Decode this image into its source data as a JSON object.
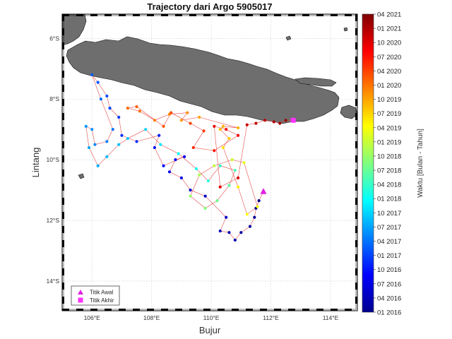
{
  "chart_data": {
    "type": "scatter",
    "title": "Trajectory dari Argo 5905017",
    "xlabel": "Bujur",
    "ylabel": "Lintang",
    "xlim": [
      105.0,
      114.9
    ],
    "ylim": [
      -14.98,
      -5.2
    ],
    "x_ticks": [
      106,
      108,
      110,
      112,
      114
    ],
    "x_tick_labels": [
      "106°E",
      "108°E",
      "110°E",
      "112°E",
      "114°E"
    ],
    "y_ticks": [
      -6,
      -8,
      -10,
      -12,
      -14
    ],
    "y_tick_labels": [
      "6°S",
      "8°S",
      "10°S",
      "12°S",
      "14°S"
    ],
    "grid": true,
    "land_color": "#6e6e6e",
    "track_color": "#e64b4b",
    "start_marker_color": "#e020e0",
    "end_marker_color": "#ff33ff",
    "colorbar": {
      "title": "Waktu [Bulan - Tahun]",
      "min": 2016.0,
      "max": 2021.25,
      "ticks": [
        2016.0,
        2016.25,
        2016.5,
        2016.75,
        2017.0,
        2017.25,
        2017.5,
        2017.75,
        2018.0,
        2018.25,
        2018.5,
        2018.75,
        2019.0,
        2019.25,
        2019.5,
        2019.75,
        2020.0,
        2020.25,
        2020.5,
        2020.75,
        2021.0,
        2021.25
      ],
      "tick_labels": [
        "01 2016",
        "04 2016",
        "07 2016",
        "10 2016",
        "01 2017",
        "04 2017",
        "07 2017",
        "10 2017",
        "01 2018",
        "04 2018",
        "07 2018",
        "10 2018",
        "01 2019",
        "04 2019",
        "07 2019",
        "10 2019",
        "01 2020",
        "04 2020",
        "07 2020",
        "10 2020",
        "01 2021",
        "04 2021"
      ]
    },
    "legend": {
      "placement": "bottom-left",
      "entries": [
        {
          "label": "Titik Awal",
          "marker": "triangle"
        },
        {
          "label": "Titik Akhir",
          "marker": "square"
        }
      ]
    },
    "start_point": {
      "x": 111.75,
      "y": -11.05
    },
    "end_point": {
      "x": 112.75,
      "y": -8.7
    },
    "series": [
      {
        "values": [
          {
            "x": 111.75,
            "y": -11.05,
            "t": 2016.0
          },
          {
            "x": 111.6,
            "y": -11.35,
            "t": 2016.04
          },
          {
            "x": 111.5,
            "y": -11.6,
            "t": 2016.08
          },
          {
            "x": 111.45,
            "y": -11.9,
            "t": 2016.12
          },
          {
            "x": 111.3,
            "y": -12.2,
            "t": 2016.16
          },
          {
            "x": 111.0,
            "y": -12.4,
            "t": 2016.2
          },
          {
            "x": 110.8,
            "y": -12.65,
            "t": 2016.24
          },
          {
            "x": 110.6,
            "y": -12.4,
            "t": 2016.28
          },
          {
            "x": 110.3,
            "y": -12.35,
            "t": 2016.32
          },
          {
            "x": 110.5,
            "y": -11.9,
            "t": 2016.36
          },
          {
            "x": 109.8,
            "y": -11.2,
            "t": 2016.4
          },
          {
            "x": 109.3,
            "y": -11.0,
            "t": 2016.45
          },
          {
            "x": 109.0,
            "y": -10.6,
            "t": 2016.5
          },
          {
            "x": 108.6,
            "y": -10.4,
            "t": 2016.55
          },
          {
            "x": 108.8,
            "y": -10.0,
            "t": 2016.6
          },
          {
            "x": 109.1,
            "y": -9.9,
            "t": 2016.65
          },
          {
            "x": 108.4,
            "y": -10.2,
            "t": 2016.7
          },
          {
            "x": 108.1,
            "y": -9.6,
            "t": 2016.75
          },
          {
            "x": 108.25,
            "y": -9.2,
            "t": 2016.8
          },
          {
            "x": 107.5,
            "y": -9.4,
            "t": 2016.85
          },
          {
            "x": 107.0,
            "y": -9.2,
            "t": 2016.9
          },
          {
            "x": 106.9,
            "y": -8.6,
            "t": 2016.95
          },
          {
            "x": 106.6,
            "y": -8.3,
            "t": 2017.0
          },
          {
            "x": 106.5,
            "y": -7.9,
            "t": 2017.05
          },
          {
            "x": 106.2,
            "y": -7.45,
            "t": 2017.1
          },
          {
            "x": 106.0,
            "y": -7.2,
            "t": 2017.15
          },
          {
            "x": 106.3,
            "y": -8.0,
            "t": 2017.2
          },
          {
            "x": 106.7,
            "y": -9.0,
            "t": 2017.25
          },
          {
            "x": 106.5,
            "y": -9.4,
            "t": 2017.3
          },
          {
            "x": 106.1,
            "y": -9.5,
            "t": 2017.35
          },
          {
            "x": 106.0,
            "y": -9.0,
            "t": 2017.4
          },
          {
            "x": 105.8,
            "y": -8.9,
            "t": 2017.45
          },
          {
            "x": 105.9,
            "y": -9.6,
            "t": 2017.5
          },
          {
            "x": 106.2,
            "y": -10.2,
            "t": 2017.55
          },
          {
            "x": 106.5,
            "y": -9.9,
            "t": 2017.6
          },
          {
            "x": 106.9,
            "y": -9.5,
            "t": 2017.65
          },
          {
            "x": 107.2,
            "y": -9.3,
            "t": 2017.7
          },
          {
            "x": 107.8,
            "y": -9.0,
            "t": 2017.75
          },
          {
            "x": 108.3,
            "y": -9.5,
            "t": 2017.85
          },
          {
            "x": 108.9,
            "y": -9.8,
            "t": 2017.95
          },
          {
            "x": 109.5,
            "y": -10.3,
            "t": 2018.05
          },
          {
            "x": 109.9,
            "y": -10.7,
            "t": 2018.15
          },
          {
            "x": 110.3,
            "y": -10.2,
            "t": 2018.25
          },
          {
            "x": 110.8,
            "y": -10.35,
            "t": 2018.35
          },
          {
            "x": 110.6,
            "y": -10.85,
            "t": 2018.45
          },
          {
            "x": 110.2,
            "y": -11.35,
            "t": 2018.55
          },
          {
            "x": 109.8,
            "y": -11.6,
            "t": 2018.65
          },
          {
            "x": 109.3,
            "y": -11.2,
            "t": 2018.75
          },
          {
            "x": 109.6,
            "y": -10.5,
            "t": 2018.85
          },
          {
            "x": 110.1,
            "y": -10.2,
            "t": 2018.95
          },
          {
            "x": 110.7,
            "y": -10.0,
            "t": 2019.05
          },
          {
            "x": 111.1,
            "y": -10.1,
            "t": 2019.15
          },
          {
            "x": 111.55,
            "y": -11.55,
            "t": 2019.22
          },
          {
            "x": 111.2,
            "y": -11.8,
            "t": 2019.28
          },
          {
            "x": 110.9,
            "y": -10.9,
            "t": 2019.35
          },
          {
            "x": 110.4,
            "y": -9.6,
            "t": 2019.45
          },
          {
            "x": 110.6,
            "y": -9.3,
            "t": 2019.55
          },
          {
            "x": 110.3,
            "y": -9.0,
            "t": 2019.6
          },
          {
            "x": 110.4,
            "y": -8.9,
            "t": 2019.65
          },
          {
            "x": 110.9,
            "y": -8.95,
            "t": 2019.7
          },
          {
            "x": 109.6,
            "y": -8.6,
            "t": 2019.75
          },
          {
            "x": 109.0,
            "y": -8.7,
            "t": 2019.8
          },
          {
            "x": 109.2,
            "y": -8.45,
            "t": 2019.85
          },
          {
            "x": 108.6,
            "y": -8.5,
            "t": 2019.9
          },
          {
            "x": 108.1,
            "y": -8.7,
            "t": 2019.95
          },
          {
            "x": 107.6,
            "y": -8.4,
            "t": 2020.0
          },
          {
            "x": 107.2,
            "y": -8.3,
            "t": 2020.05
          },
          {
            "x": 107.5,
            "y": -8.25,
            "t": 2020.1
          },
          {
            "x": 108.4,
            "y": -8.9,
            "t": 2020.15
          },
          {
            "x": 108.65,
            "y": -8.45,
            "t": 2020.2
          },
          {
            "x": 109.3,
            "y": -8.8,
            "t": 2020.25
          },
          {
            "x": 109.75,
            "y": -9.05,
            "t": 2020.3
          },
          {
            "x": 109.4,
            "y": -9.6,
            "t": 2020.4
          },
          {
            "x": 110.1,
            "y": -9.7,
            "t": 2020.5
          },
          {
            "x": 110.9,
            "y": -9.2,
            "t": 2020.6
          },
          {
            "x": 110.5,
            "y": -9.0,
            "t": 2020.65
          },
          {
            "x": 110.1,
            "y": -8.9,
            "t": 2020.7
          },
          {
            "x": 110.3,
            "y": -10.9,
            "t": 2020.75
          },
          {
            "x": 110.9,
            "y": -10.6,
            "t": 2020.8
          },
          {
            "x": 111.2,
            "y": -8.85,
            "t": 2020.85
          },
          {
            "x": 111.5,
            "y": -8.8,
            "t": 2020.9
          },
          {
            "x": 111.8,
            "y": -8.7,
            "t": 2020.95
          },
          {
            "x": 112.1,
            "y": -8.75,
            "t": 2021.0
          },
          {
            "x": 112.3,
            "y": -8.8,
            "t": 2021.05
          },
          {
            "x": 112.5,
            "y": -8.7,
            "t": 2021.1
          },
          {
            "x": 112.75,
            "y": -8.7,
            "t": 2021.15
          }
        ]
      }
    ]
  }
}
